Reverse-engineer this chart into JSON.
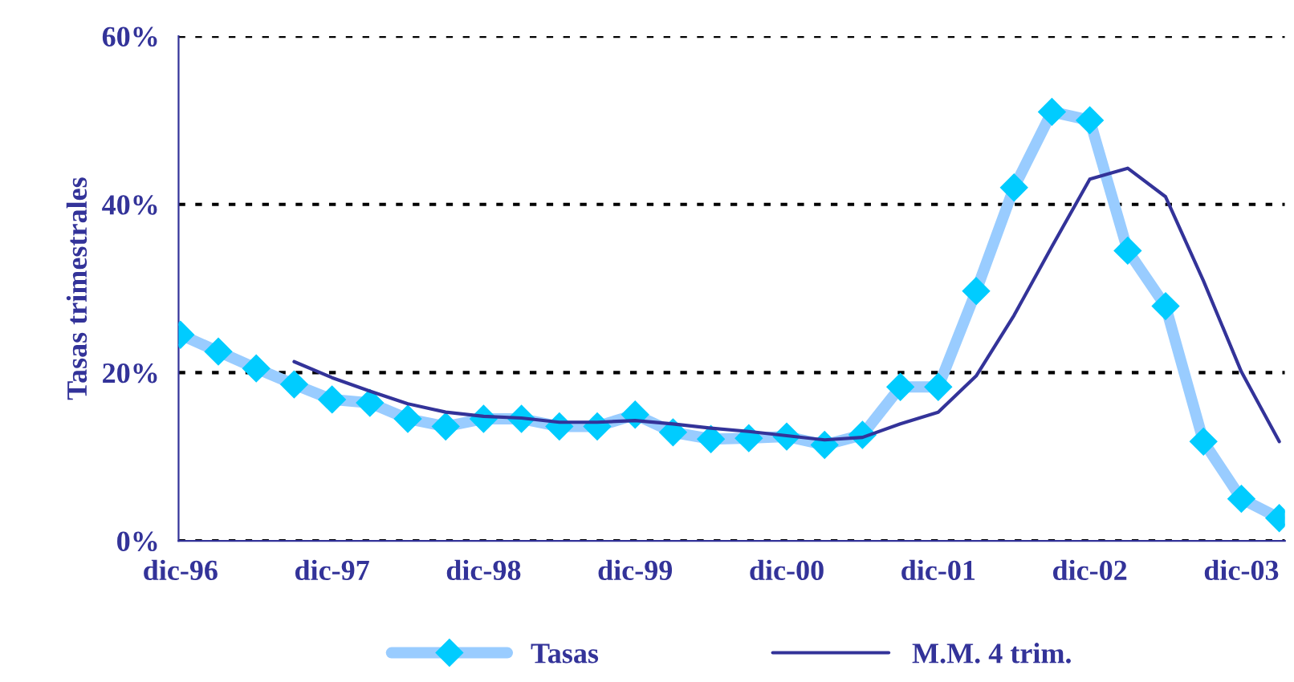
{
  "chart_data": {
    "type": "line",
    "ylabel": "Tasas trimestrales",
    "categories": [
      "dic-96",
      null,
      null,
      null,
      "dic-97",
      null,
      null,
      null,
      "dic-98",
      null,
      null,
      null,
      "dic-99",
      null,
      null,
      null,
      "dic-00",
      null,
      null,
      null,
      "dic-01",
      null,
      null,
      null,
      "dic-02",
      null,
      null,
      null,
      "dic-03",
      null
    ],
    "series": [
      {
        "name": "Tasas",
        "color": "#99ccff",
        "marker": "diamond",
        "colors": [
          "#00ccff",
          "#00ccff",
          "#00ccff",
          "#00ccff",
          "#00ccff",
          "#00ccff",
          "#00ccff",
          "#00ccff",
          "#00ccff",
          "#00ccff",
          "#00ccff",
          "#00ccff",
          "#00ccff",
          "#00ccff",
          "#00ccff",
          "#00ccff",
          "#00ccff",
          "#00ccff",
          "#00ccff",
          "#00ccff",
          "#00ccff",
          "#00ccff",
          "#00ccff",
          "#00ccff",
          "#00ccff",
          "#00ccff",
          "#00ccff",
          "#00ccff",
          "#00ccff",
          "#00ccff"
        ],
        "values": [
          24.5,
          22.5,
          20.5,
          18.6,
          16.8,
          16.4,
          14.5,
          13.6,
          14.5,
          14.5,
          13.6,
          13.6,
          15.0,
          12.9,
          12.1,
          12.2,
          12.4,
          11.4,
          12.6,
          18.3,
          18.3,
          29.7,
          42.0,
          51.0,
          50.0,
          34.5,
          27.9,
          11.8,
          5.0,
          2.7
        ]
      },
      {
        "name": "M.M. 4 trim.",
        "color": "#333399",
        "marker": "none",
        "values": [
          null,
          null,
          null,
          21.3,
          19.4,
          17.8,
          16.3,
          15.3,
          14.8,
          14.6,
          14.1,
          14.1,
          14.3,
          13.9,
          13.4,
          13.0,
          12.5,
          12.0,
          12.3,
          13.9,
          15.3,
          19.6,
          26.8,
          35.0,
          43.0,
          44.3,
          40.9,
          30.9,
          20.1,
          11.8
        ]
      }
    ],
    "ylim": [
      0,
      60
    ],
    "yticks": [
      {
        "value": 0,
        "label": "0%"
      },
      {
        "value": 20,
        "label": "20%"
      },
      {
        "value": 40,
        "label": "40%"
      },
      {
        "value": 60,
        "label": "60%"
      }
    ],
    "grid": "y",
    "legend": "bottom"
  }
}
